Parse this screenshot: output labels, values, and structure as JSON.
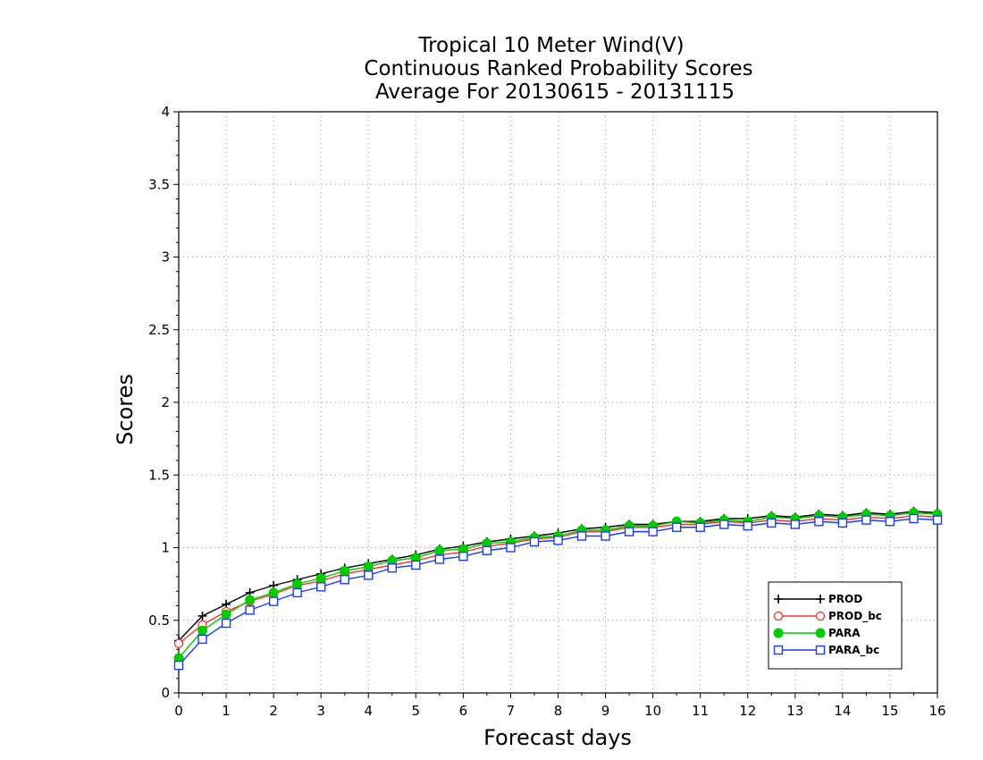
{
  "chart_data": {
    "type": "line",
    "title_lines": [
      "Tropical 10 Meter Wind(V)",
      "Continuous Ranked Probability Scores",
      "Average For 20130615 - 20131115"
    ],
    "xlabel": "Forecast days",
    "ylabel": "Scores",
    "xlim": [
      0,
      16
    ],
    "ylim": [
      0,
      4
    ],
    "x_ticks": [
      "0",
      "1",
      "2",
      "3",
      "4",
      "5",
      "6",
      "7",
      "8",
      "9",
      "10",
      "11",
      "12",
      "13",
      "14",
      "15",
      "16"
    ],
    "y_ticks": [
      "0",
      "0.5",
      "1",
      "1.5",
      "2",
      "2.5",
      "3",
      "3.5",
      "4"
    ],
    "grid": true,
    "legend_position": "bottom-right",
    "x": [
      0,
      0.5,
      1,
      1.5,
      2,
      2.5,
      3,
      3.5,
      4,
      4.5,
      5,
      5.5,
      6,
      6.5,
      7,
      7.5,
      8,
      8.5,
      9,
      9.5,
      10,
      10.5,
      11,
      11.5,
      12,
      12.5,
      13,
      13.5,
      14,
      14.5,
      15,
      15.5,
      16
    ],
    "series": [
      {
        "name": "PROD",
        "color": "#000000",
        "marker": "plus",
        "values": [
          0.36,
          0.53,
          0.61,
          0.69,
          0.74,
          0.78,
          0.82,
          0.86,
          0.89,
          0.92,
          0.95,
          0.99,
          1.01,
          1.04,
          1.06,
          1.08,
          1.1,
          1.13,
          1.14,
          1.16,
          1.16,
          1.18,
          1.18,
          1.2,
          1.2,
          1.22,
          1.21,
          1.23,
          1.22,
          1.24,
          1.23,
          1.25,
          1.24
        ]
      },
      {
        "name": "PROD_bc",
        "color": "#ff3333",
        "marker": "open-circle",
        "values": [
          0.34,
          0.47,
          0.56,
          0.63,
          0.68,
          0.74,
          0.77,
          0.82,
          0.85,
          0.88,
          0.91,
          0.95,
          0.97,
          1.01,
          1.03,
          1.06,
          1.07,
          1.11,
          1.11,
          1.14,
          1.14,
          1.16,
          1.16,
          1.18,
          1.17,
          1.19,
          1.18,
          1.2,
          1.19,
          1.21,
          1.2,
          1.22,
          1.21
        ]
      },
      {
        "name": "PARA",
        "color": "#00cc00",
        "marker": "filled-circle",
        "values": [
          0.24,
          0.43,
          0.54,
          0.64,
          0.69,
          0.75,
          0.79,
          0.84,
          0.87,
          0.91,
          0.93,
          0.98,
          0.99,
          1.03,
          1.04,
          1.07,
          1.08,
          1.12,
          1.12,
          1.15,
          1.15,
          1.18,
          1.17,
          1.19,
          1.18,
          1.21,
          1.2,
          1.22,
          1.21,
          1.23,
          1.22,
          1.24,
          1.23
        ]
      },
      {
        "name": "PARA_bc",
        "color": "#1a3cff",
        "marker": "open-square",
        "values": [
          0.19,
          0.37,
          0.48,
          0.57,
          0.63,
          0.69,
          0.73,
          0.78,
          0.81,
          0.86,
          0.88,
          0.92,
          0.94,
          0.98,
          1.0,
          1.04,
          1.05,
          1.08,
          1.08,
          1.11,
          1.11,
          1.14,
          1.14,
          1.16,
          1.15,
          1.17,
          1.16,
          1.18,
          1.17,
          1.19,
          1.18,
          1.2,
          1.19
        ]
      }
    ]
  }
}
